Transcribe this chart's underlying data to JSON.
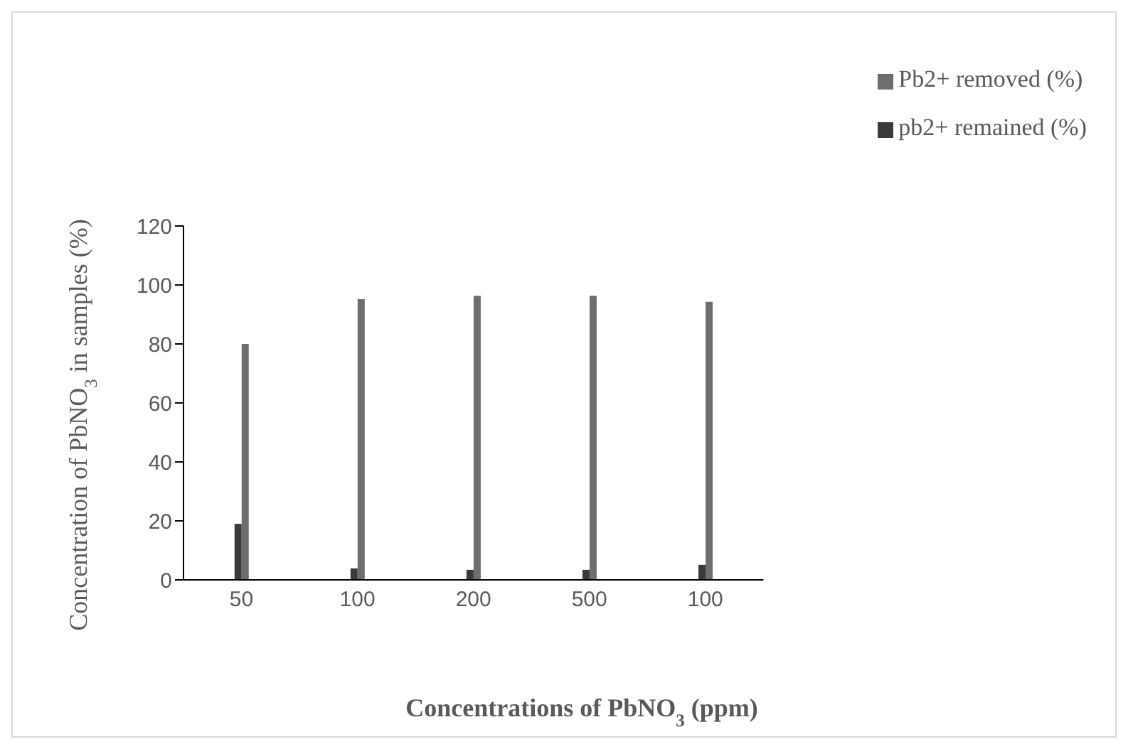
{
  "chart_data": {
    "type": "bar",
    "xlabel": "Concentrations of PbNO$_{3}$ (ppm)",
    "ylabel": "Concentration of PbNO$_{3}$ in samples (%)",
    "categories": [
      "50",
      "100",
      "200",
      "500",
      "100"
    ],
    "series": [
      {
        "name": "pb2+ remained (%)",
        "color": "#3a3a3a",
        "values": [
          19,
          3.9,
          3.4,
          3.4,
          5.1
        ]
      },
      {
        "name": "Pb2+ removed (%)",
        "color": "#6e6e6e",
        "values": [
          80,
          95.2,
          96.3,
          96.3,
          94.3
        ]
      }
    ],
    "ylim": [
      0,
      120
    ],
    "yticks": [
      0,
      20,
      40,
      60,
      80,
      100,
      120
    ],
    "grid": false,
    "legend": "top right"
  }
}
